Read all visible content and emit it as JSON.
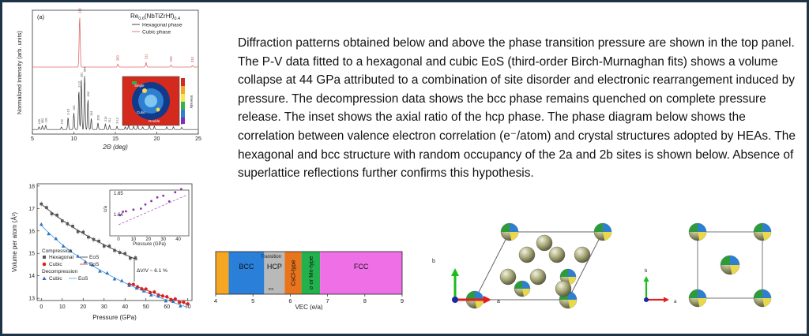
{
  "panel_a": {
    "label": "(a)",
    "formula_main": "Re",
    "formula_sub1": "0.6",
    "formula_paren": "(NbTiZrHf)",
    "formula_sub2": "0.4",
    "legend_hex": "Hexagonal phase",
    "legend_cubic": "Cubic phase",
    "ylabel": "Normalized Intensity (arb. units)",
    "xlabel": "2Θ (deg)",
    "xticks": [
      "5",
      "10",
      "15",
      "20",
      "25"
    ],
    "cubic_peaks": [
      {
        "label": "110",
        "two_theta": 10.7
      },
      {
        "label": "200",
        "two_theta": 15.3
      },
      {
        "label": "211",
        "two_theta": 18.7
      },
      {
        "label": "220",
        "two_theta": 21.7
      },
      {
        "label": "310",
        "two_theta": 24.3
      }
    ],
    "hex_peaks": [
      {
        "label": "100",
        "two_theta": 5.8
      },
      {
        "label": "002",
        "two_theta": 6.2
      },
      {
        "label": "101",
        "two_theta": 6.6
      },
      {
        "label": "102",
        "two_theta": 8.5
      },
      {
        "label": "2-10",
        "two_theta": 9.3
      },
      {
        "label": "103",
        "two_theta": 10.0
      },
      {
        "label": "2-12",
        "two_theta": 10.6
      },
      {
        "label": "201",
        "two_theta": 10.9
      },
      {
        "label": "004",
        "two_theta": 11.3
      },
      {
        "label": "202",
        "two_theta": 11.7
      },
      {
        "label": "104",
        "two_theta": 12.1
      },
      {
        "label": "203",
        "two_theta": 12.9
      },
      {
        "label": "210",
        "two_theta": 13.8
      },
      {
        "label": "211",
        "two_theta": 14.3
      },
      {
        "label": "3-12",
        "two_theta": 15.2
      },
      {
        "label": "3-13",
        "two_theta": 16.2
      },
      {
        "label": "300",
        "two_theta": 16.6
      },
      {
        "label": "213",
        "two_theta": 17.2
      },
      {
        "label": "302",
        "two_theta": 17.7
      },
      {
        "label": "006",
        "two_theta": 18.3
      },
      {
        "label": "205",
        "two_theta": 19.1
      },
      {
        "label": "4-10",
        "two_theta": 19.7
      },
      {
        "label": "4-13",
        "two_theta": 21.2
      },
      {
        "label": "402",
        "two_theta": 22.0
      },
      {
        "label": "106",
        "two_theta": 23.0
      }
    ],
    "inset": {
      "label_top": "Single",
      "label_mid": "Cubic",
      "label_bottom": "Double",
      "colorbar_label": "Intensity"
    }
  },
  "panel_b": {
    "ylabel": "Volume per atom (Å³)",
    "xlabel": "Pressure (GPa)",
    "yticks": [
      "13",
      "14",
      "15",
      "16",
      "17",
      "18"
    ],
    "xticks": [
      "0",
      "10",
      "20",
      "30",
      "40",
      "50",
      "60",
      "70"
    ],
    "legend": {
      "compression": "Compression",
      "hex": "Hexagonal",
      "hex_eos": "EoS",
      "cubic": "Cubic",
      "cubic_eos": "EoS",
      "decompression": "Decompression",
      "dcubic": "Cubic",
      "dcubic_eos": "EoS"
    },
    "annotation": "ΔV/V ~ 6.1 %",
    "inset": {
      "ylabel": "c/a",
      "xlabel": "Pressure (GPa)",
      "yticks": [
        "1.64",
        "1.65"
      ],
      "xticks": [
        "0",
        "10",
        "20",
        "30",
        "40"
      ]
    }
  },
  "vec_bar": {
    "xlabel": "VEC (e/a)",
    "ticks": [
      "4",
      "5",
      "6",
      "7",
      "8",
      "9"
    ],
    "segments": [
      {
        "label": "",
        "color": "#f5a623"
      },
      {
        "label": "BCC",
        "color": "#2a7fd8"
      },
      {
        "label": "HCP",
        "color": "#b9b9b9"
      },
      {
        "label": "CsCl-type",
        "color": "#e8741e"
      },
      {
        "label": "σ or Mn-type",
        "color": "#22b14c"
      },
      {
        "label": "FCC",
        "color": "#ee6fe6"
      }
    ],
    "transition": "Transition"
  },
  "crystal": {
    "hex_axis_b": "b",
    "hex_axis_a": "a",
    "bcc_axis_b": "b",
    "bcc_axis_a": "a"
  },
  "text": "Diffraction patterns obtained below and above the phase transition pressure are shown in the top panel. The P-V data fitted to a hexagonal and cubic EoS (third-order Birch-Murnaghan fits) shows a volume collapse at 44 GPa attributed to a combination of site disorder and electronic rearrangement induced by pressure. The decompression data shows the bcc phase remains quenched on complete pressure release. The inset shows the axial ratio of the hcp phase. The phase diagram below shows the correlation between valence electron correlation (e⁻/atom) and crystal structures adopted by HEAs. The hexagonal and bcc structure with random occupancy of the 2a and 2b sites is shown below. Absence of superlattice reflections further confirms this hypothesis."
}
